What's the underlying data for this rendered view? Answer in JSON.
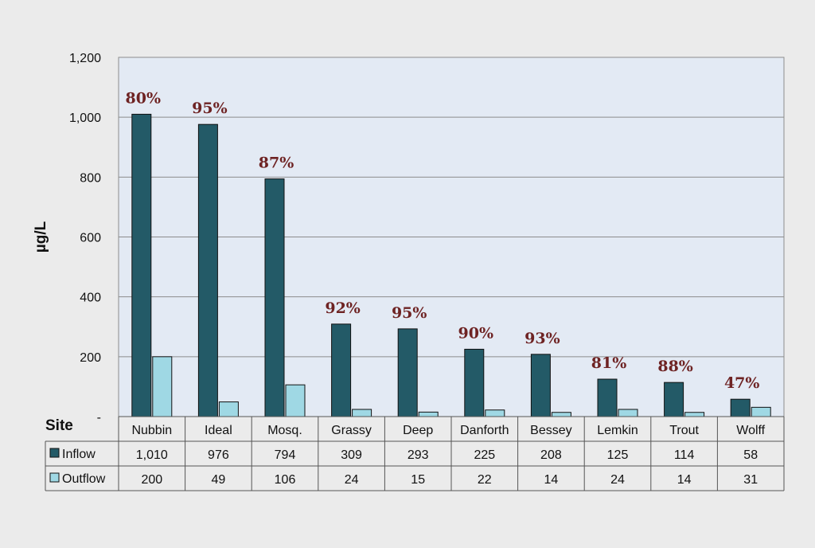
{
  "chart_data": {
    "type": "bar",
    "ylabel": "µg/L",
    "ylim": [
      0,
      1200
    ],
    "ytick_labels": [
      "-",
      "200",
      "400",
      "600",
      "800",
      "1,000",
      "1,200"
    ],
    "yticks": [
      0,
      200,
      400,
      600,
      800,
      1000,
      1200
    ],
    "grid": true,
    "table_header": "Site",
    "categories": [
      "Nubbin",
      "Ideal",
      "Mosq.",
      "Grassy",
      "Deep",
      "Danforth",
      "Bessey",
      "Lemkin",
      "Trout",
      "Wolff"
    ],
    "series": [
      {
        "name": "Inflow",
        "color": "#235a67",
        "values": [
          1010,
          976,
          794,
          309,
          293,
          225,
          208,
          125,
          114,
          58
        ],
        "value_labels": [
          "1,010",
          "976",
          "794",
          "309",
          "293",
          "225",
          "208",
          "125",
          "114",
          "58"
        ]
      },
      {
        "name": "Outflow",
        "color": "#9fd8e4",
        "values": [
          200,
          49,
          106,
          24,
          15,
          22,
          14,
          24,
          14,
          31
        ],
        "value_labels": [
          "200",
          "49",
          "106",
          "24",
          "15",
          "22",
          "14",
          "24",
          "14",
          "31"
        ]
      }
    ],
    "annotations": [
      "80%",
      "95%",
      "87%",
      "92%",
      "95%",
      "90%",
      "93%",
      "81%",
      "88%",
      "47%"
    ],
    "plot_background": "#e3eaf4",
    "annotation_color": "#6e2323"
  }
}
